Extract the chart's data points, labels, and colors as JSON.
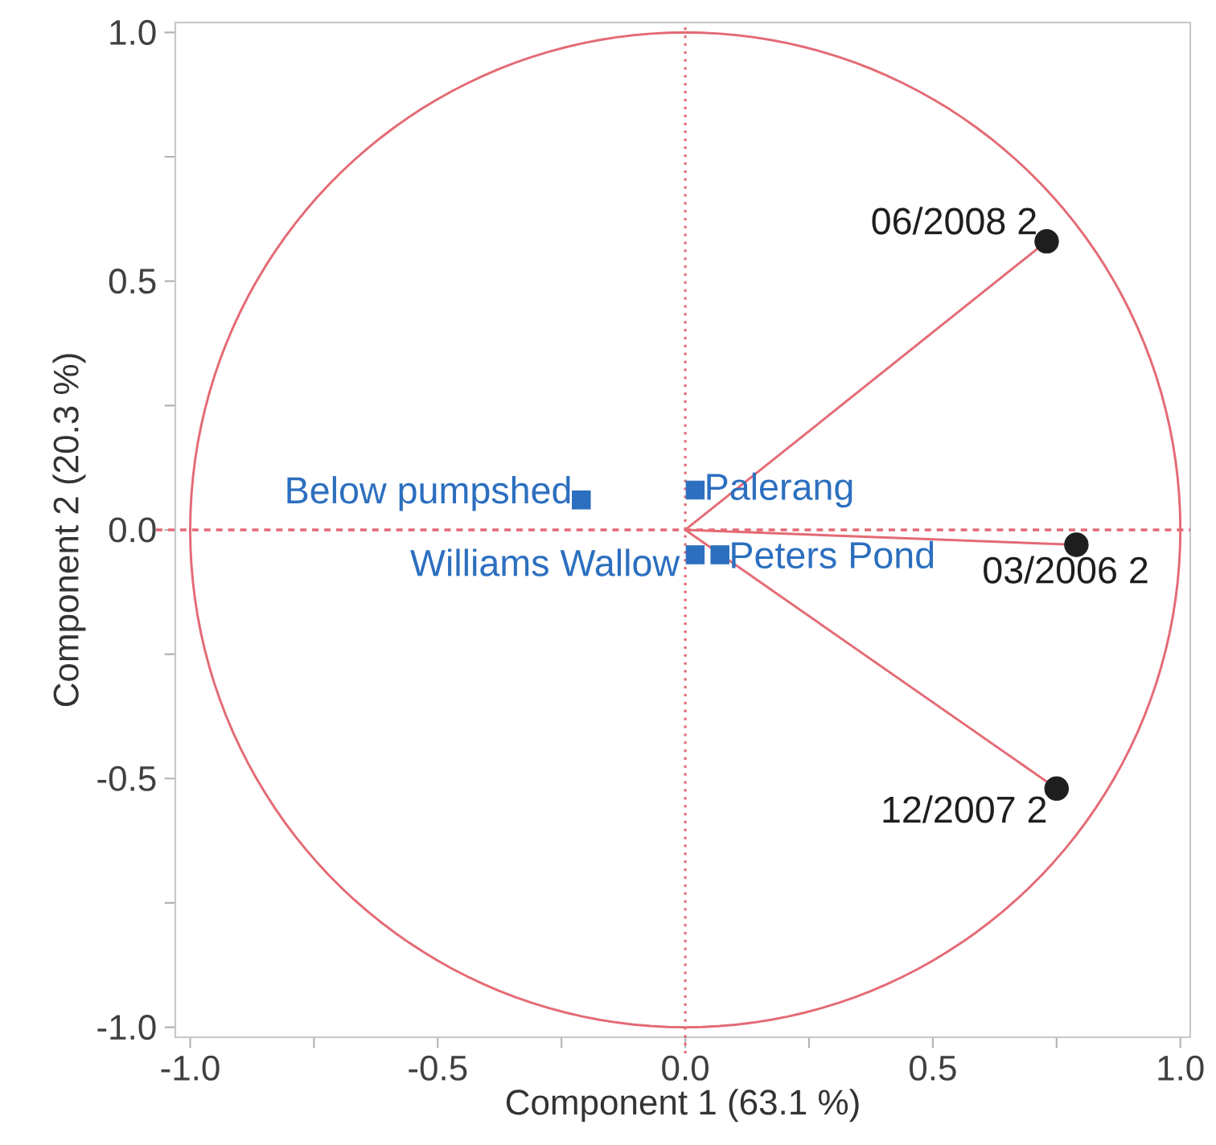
{
  "chart_data": {
    "type": "scatter",
    "xlabel": "Component 1 (63.1 %)",
    "ylabel": "Component 2 (20.3 %)",
    "xlim": [
      -1.03,
      1.02
    ],
    "ylim": [
      -1.02,
      1.02
    ],
    "xticks": [
      {
        "value": -1,
        "label": "-1.0"
      },
      {
        "value": -0.75,
        "label": null
      },
      {
        "value": -0.5,
        "label": "-0.5"
      },
      {
        "value": -0.25,
        "label": null
      },
      {
        "value": 0,
        "label": "0.0"
      },
      {
        "value": 0.25,
        "label": null
      },
      {
        "value": 0.5,
        "label": "0.5"
      },
      {
        "value": 0.75,
        "label": null
      },
      {
        "value": 1,
        "label": "1.0"
      }
    ],
    "yticks": [
      {
        "value": -1,
        "label": "-1.0"
      },
      {
        "value": -0.75,
        "label": null
      },
      {
        "value": -0.5,
        "label": "-0.5"
      },
      {
        "value": -0.25,
        "label": null
      },
      {
        "value": 0,
        "label": "0.0"
      },
      {
        "value": 0.25,
        "label": null
      },
      {
        "value": 0.5,
        "label": "0.5"
      },
      {
        "value": 0.75,
        "label": null
      },
      {
        "value": 1,
        "label": "1.0"
      }
    ],
    "ref_lines": [
      {
        "axis": "x",
        "value": 0,
        "color": "#e46a74",
        "line_style": "dotted"
      },
      {
        "axis": "y",
        "value": 0,
        "color": "#e46a74",
        "line_style": "dashed"
      }
    ],
    "series": [
      {
        "type": "line",
        "color": "#e46a74",
        "x": [
          0,
          0.73
        ],
        "values": [
          0,
          0.58
        ]
      },
      {
        "type": "line",
        "color": "#e46a74",
        "x": [
          0,
          0.79
        ],
        "values": [
          0,
          -0.03
        ]
      },
      {
        "type": "line",
        "color": "#e46a74",
        "x": [
          0,
          0.75
        ],
        "values": [
          0,
          -0.52
        ]
      },
      {
        "name": "06/2008 2",
        "color": "#1e1e1e",
        "marker": "circle",
        "x": [
          0.73
        ],
        "values": [
          0.58
        ]
      },
      {
        "name": "03/2006 2",
        "color": "#1e1e1e",
        "marker": "circle",
        "x": [
          0.79
        ],
        "values": [
          -0.03
        ]
      },
      {
        "name": "12/2007 2",
        "color": "#1e1e1e",
        "marker": "circle",
        "x": [
          0.75
        ],
        "values": [
          -0.52
        ]
      },
      {
        "name": "Below pumpshed",
        "color": "#2c6fbf",
        "marker": "square",
        "x": [
          -0.21
        ],
        "values": [
          0.06
        ]
      },
      {
        "name": "Palerang",
        "color": "#2c6fbf",
        "marker": "square",
        "x": [
          0.02
        ],
        "values": [
          0.08
        ]
      },
      {
        "name": "Williams Wallow",
        "color": "#2c6fbf",
        "marker": "square",
        "x": [
          0.02
        ],
        "values": [
          -0.05
        ]
      },
      {
        "name": "Peters Pond",
        "color": "#2c6fbf",
        "marker": "square",
        "x": [
          0.07
        ],
        "values": [
          -0.05
        ]
      }
    ]
  }
}
